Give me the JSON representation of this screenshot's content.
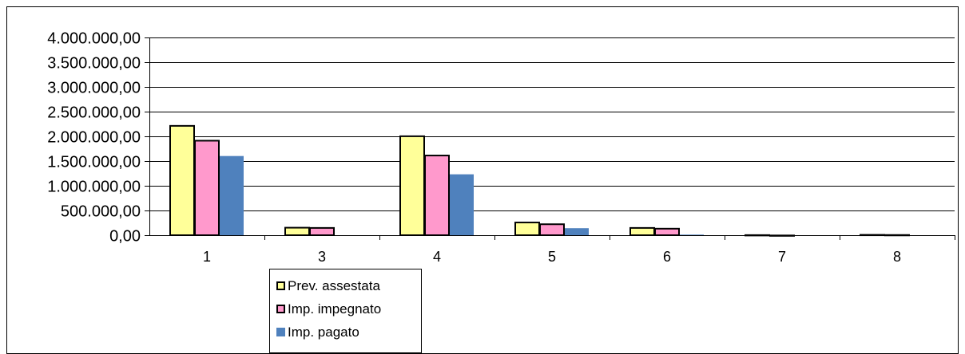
{
  "chart_data": {
    "type": "bar",
    "title": "",
    "xlabel": "",
    "ylabel": "",
    "categories": [
      "1",
      "3",
      "4",
      "5",
      "6",
      "7",
      "8"
    ],
    "ylim": [
      0,
      4000000
    ],
    "yticks": [
      0,
      500000,
      1000000,
      1500000,
      2000000,
      2500000,
      3000000,
      3500000,
      4000000
    ],
    "ytick_labels": [
      "0,00",
      "500.000,00",
      "1.000.000,00",
      "1.500.000,00",
      "2.000.000,00",
      "2.500.000,00",
      "3.000.000,00",
      "3.500.000,00",
      "4.000.000,00"
    ],
    "grid": true,
    "legend_position": "bottom",
    "series": [
      {
        "name": "Prev. assestata",
        "color": "#ffff99",
        "outlined": true,
        "values": [
          2220000,
          160000,
          2010000,
          265000,
          155000,
          10000,
          15000
        ]
      },
      {
        "name": "Imp. impegnato",
        "color": "#ff99cc",
        "outlined": true,
        "values": [
          1920000,
          155000,
          1620000,
          230000,
          140000,
          3000,
          12000
        ]
      },
      {
        "name": "Imp. pagato",
        "color": "#4f81bd",
        "outlined": false,
        "values": [
          1610000,
          0,
          1240000,
          150000,
          20000,
          0,
          0
        ]
      }
    ]
  }
}
